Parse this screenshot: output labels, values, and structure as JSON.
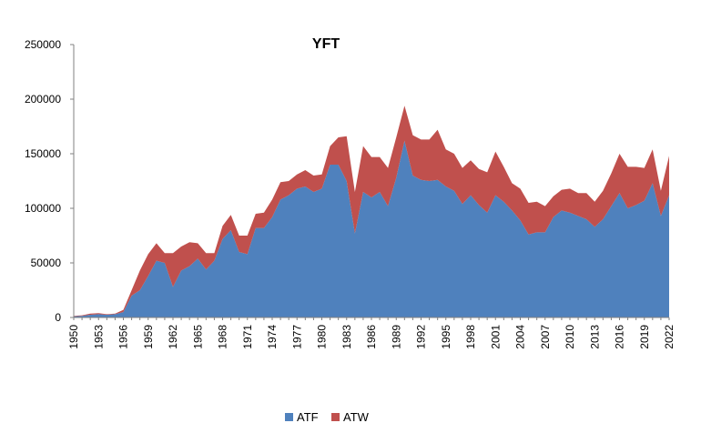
{
  "chart_data": {
    "type": "area",
    "stacked": true,
    "title": "YFT",
    "xlabel": "",
    "ylabel": "",
    "ylim": [
      0,
      250000
    ],
    "yticks": [
      0,
      50000,
      100000,
      150000,
      200000,
      250000
    ],
    "yticklabels": [
      "0",
      "50000",
      "100000",
      "150000",
      "200000",
      "250000"
    ],
    "xticklabels": [
      "1950",
      "1953",
      "1956",
      "1959",
      "1962",
      "1965",
      "1968",
      "1971",
      "1974",
      "1977",
      "1980",
      "1983",
      "1986",
      "1989",
      "1992",
      "1995",
      "1998",
      "2001",
      "2004",
      "2007",
      "2010",
      "2013",
      "2016",
      "2019",
      "2022"
    ],
    "grid": false,
    "legend": "bottom-center",
    "x": [
      1950,
      1951,
      1952,
      1953,
      1954,
      1955,
      1956,
      1957,
      1958,
      1959,
      1960,
      1961,
      1962,
      1963,
      1964,
      1965,
      1966,
      1967,
      1968,
      1969,
      1970,
      1971,
      1972,
      1973,
      1974,
      1975,
      1976,
      1977,
      1978,
      1979,
      1980,
      1981,
      1982,
      1983,
      1984,
      1985,
      1986,
      1987,
      1988,
      1989,
      1990,
      1991,
      1992,
      1993,
      1994,
      1995,
      1996,
      1997,
      1998,
      1999,
      2000,
      2001,
      2002,
      2003,
      2004,
      2005,
      2006,
      2007,
      2008,
      2009,
      2010,
      2011,
      2012,
      2013,
      2014,
      2015,
      2016,
      2017,
      2018,
      2019,
      2020,
      2021,
      2022
    ],
    "series": [
      {
        "name": "ATF",
        "color": "#4F81BD",
        "values": [
          1000,
          1500,
          2500,
          3000,
          2500,
          3000,
          5000,
          20000,
          25000,
          38000,
          52000,
          50000,
          28000,
          43000,
          47000,
          54000,
          44000,
          52000,
          72000,
          80000,
          60000,
          58000,
          82000,
          82000,
          92000,
          108000,
          112000,
          118000,
          120000,
          115000,
          118000,
          140000,
          140000,
          125000,
          77000,
          115000,
          110000,
          115000,
          102000,
          128000,
          162000,
          130000,
          126000,
          125000,
          126000,
          120000,
          116000,
          104000,
          112000,
          103000,
          96000,
          112000,
          106000,
          98000,
          89000,
          76000,
          78000,
          78000,
          92000,
          98000,
          96000,
          93000,
          90000,
          83000,
          90000,
          102000,
          114000,
          100000,
          103000,
          107000,
          123000,
          93000,
          112000
        ]
      },
      {
        "name": "ATW",
        "color": "#C0504D",
        "values": [
          500,
          500,
          1000,
          1000,
          500,
          500,
          2000,
          5000,
          18000,
          20000,
          16000,
          9000,
          31000,
          22000,
          22000,
          14000,
          15000,
          7000,
          12000,
          14000,
          15000,
          17000,
          13000,
          14000,
          16000,
          16000,
          13000,
          13000,
          15000,
          15000,
          13000,
          17000,
          25000,
          41000,
          38000,
          42000,
          37000,
          32000,
          35000,
          37000,
          32000,
          37000,
          37000,
          38000,
          46000,
          34000,
          34000,
          33000,
          32000,
          33000,
          37000,
          40000,
          32000,
          25000,
          29000,
          29000,
          28000,
          24000,
          19000,
          19000,
          22000,
          21000,
          24000,
          23000,
          26000,
          30000,
          36000,
          38000,
          35000,
          30000,
          31000,
          23000,
          36000
        ]
      }
    ]
  }
}
